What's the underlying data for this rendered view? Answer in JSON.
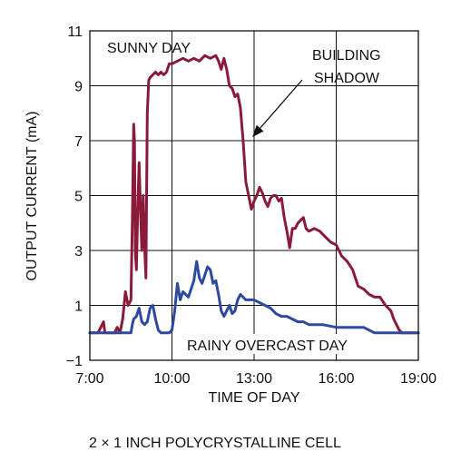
{
  "chart_data": {
    "type": "line",
    "xlabel": "TIME OF DAY",
    "ylabel": "OUTPUT CURRENT (mA)",
    "xlim": [
      7,
      19
    ],
    "ylim": [
      -1,
      11
    ],
    "x_ticks": [
      7,
      10,
      13,
      16,
      19
    ],
    "x_tick_labels": [
      "7:00",
      "10:00",
      "13:00",
      "16:00",
      "19:00"
    ],
    "y_ticks": [
      -1,
      1,
      3,
      5,
      7,
      9,
      11
    ],
    "y_tick_labels": [
      "−1",
      "1",
      "3",
      "5",
      "7",
      "9",
      "11"
    ],
    "grid": true,
    "series": [
      {
        "name": "SUNNY DAY",
        "color": "#8b1a3a",
        "x": [
          7.0,
          7.3,
          7.5,
          7.55,
          7.6,
          7.7,
          7.9,
          8.0,
          8.1,
          8.2,
          8.3,
          8.4,
          8.5,
          8.55,
          8.6,
          8.63,
          8.66,
          8.7,
          8.75,
          8.8,
          8.85,
          8.9,
          8.95,
          9.0,
          9.05,
          9.1,
          9.15,
          9.2,
          9.3,
          9.4,
          9.5,
          9.6,
          9.7,
          9.8,
          9.9,
          10.0,
          10.2,
          10.4,
          10.6,
          10.8,
          11.0,
          11.2,
          11.4,
          11.6,
          11.7,
          11.8,
          11.9,
          12.0,
          12.1,
          12.2,
          12.3,
          12.4,
          12.5,
          12.6,
          12.7,
          12.8,
          12.9,
          13.0,
          13.1,
          13.2,
          13.3,
          13.4,
          13.5,
          13.6,
          13.7,
          13.8,
          13.9,
          14.0,
          14.1,
          14.2,
          14.3,
          14.4,
          14.5,
          14.6,
          14.7,
          14.8,
          14.9,
          15.0,
          15.2,
          15.4,
          15.6,
          15.8,
          16.0,
          16.2,
          16.4,
          16.6,
          16.8,
          17.0,
          17.2,
          17.4,
          17.6,
          17.8,
          18.0,
          18.1,
          18.2,
          18.3,
          18.4,
          18.5,
          18.6,
          18.7,
          18.8,
          19.0
        ],
        "y": [
          0.0,
          0.0,
          0.4,
          0.0,
          0.0,
          0.0,
          0.0,
          0.2,
          0.0,
          0.5,
          1.5,
          1.0,
          1.2,
          4.0,
          7.6,
          7.0,
          3.0,
          2.3,
          4.5,
          6.2,
          4.5,
          3.0,
          5.0,
          3.2,
          2.0,
          8.0,
          9.2,
          9.3,
          9.4,
          9.5,
          9.4,
          9.5,
          9.4,
          9.5,
          9.8,
          9.8,
          9.9,
          10.0,
          9.9,
          10.0,
          9.9,
          10.1,
          10.0,
          10.1,
          9.9,
          9.6,
          10.0,
          9.6,
          9.0,
          8.9,
          8.6,
          8.7,
          8.2,
          7.0,
          5.5,
          5.0,
          4.5,
          4.8,
          5.0,
          5.3,
          5.1,
          4.8,
          4.6,
          4.9,
          5.0,
          5.0,
          4.8,
          4.9,
          4.2,
          3.7,
          3.1,
          3.8,
          3.8,
          4.0,
          4.1,
          4.2,
          3.8,
          3.7,
          3.8,
          3.7,
          3.5,
          3.3,
          3.2,
          2.8,
          2.6,
          2.3,
          1.7,
          1.6,
          1.4,
          1.3,
          1.3,
          1.0,
          0.8,
          0.5,
          0.3,
          0.1,
          0.0,
          0.0,
          0.0,
          0.0,
          0.0,
          0.0
        ]
      },
      {
        "name": "RAINY OVERCAST DAY",
        "color": "#2e4aa0",
        "x": [
          7.0,
          8.0,
          8.3,
          8.5,
          8.55,
          8.6,
          8.7,
          8.8,
          8.9,
          9.0,
          9.1,
          9.2,
          9.3,
          9.4,
          9.5,
          9.6,
          9.7,
          9.8,
          9.9,
          10.0,
          10.1,
          10.2,
          10.3,
          10.4,
          10.5,
          10.6,
          10.7,
          10.8,
          10.9,
          11.0,
          11.1,
          11.2,
          11.3,
          11.4,
          11.5,
          11.6,
          11.7,
          11.8,
          11.9,
          12.0,
          12.1,
          12.2,
          12.3,
          12.4,
          12.5,
          12.6,
          12.7,
          12.8,
          13.0,
          13.2,
          13.4,
          13.6,
          13.8,
          14.0,
          14.2,
          14.4,
          14.6,
          14.8,
          15.0,
          15.5,
          16.0,
          16.5,
          17.0,
          17.2,
          17.4,
          17.6,
          18.0,
          18.5,
          19.0
        ],
        "y": [
          0.0,
          0.0,
          0.0,
          0.0,
          0.3,
          0.5,
          0.6,
          0.9,
          0.4,
          0.3,
          0.4,
          0.9,
          1.0,
          0.5,
          0.1,
          0.0,
          0.0,
          0.0,
          0.0,
          0.1,
          0.8,
          1.8,
          1.2,
          1.5,
          1.4,
          1.3,
          1.6,
          1.9,
          2.6,
          2.0,
          1.8,
          2.1,
          2.4,
          2.3,
          1.8,
          1.9,
          1.4,
          0.8,
          0.6,
          0.8,
          1.0,
          0.7,
          0.8,
          1.2,
          1.4,
          1.3,
          1.2,
          1.2,
          1.2,
          1.1,
          1.0,
          0.9,
          0.7,
          0.6,
          0.6,
          0.5,
          0.4,
          0.4,
          0.3,
          0.3,
          0.2,
          0.2,
          0.2,
          0.1,
          0.0,
          0.0,
          0.0,
          0.0,
          0.0
        ]
      }
    ],
    "annotations": [
      {
        "text": "SUNNY DAY",
        "series": 0
      },
      {
        "text": "BUILDING",
        "line": 1
      },
      {
        "text": "SHADOW",
        "line": 2
      },
      {
        "text": "RAINY OVERCAST DAY",
        "series": 1
      }
    ]
  },
  "caption": "2 × 1 INCH POLYCRYSTALLINE CELL"
}
